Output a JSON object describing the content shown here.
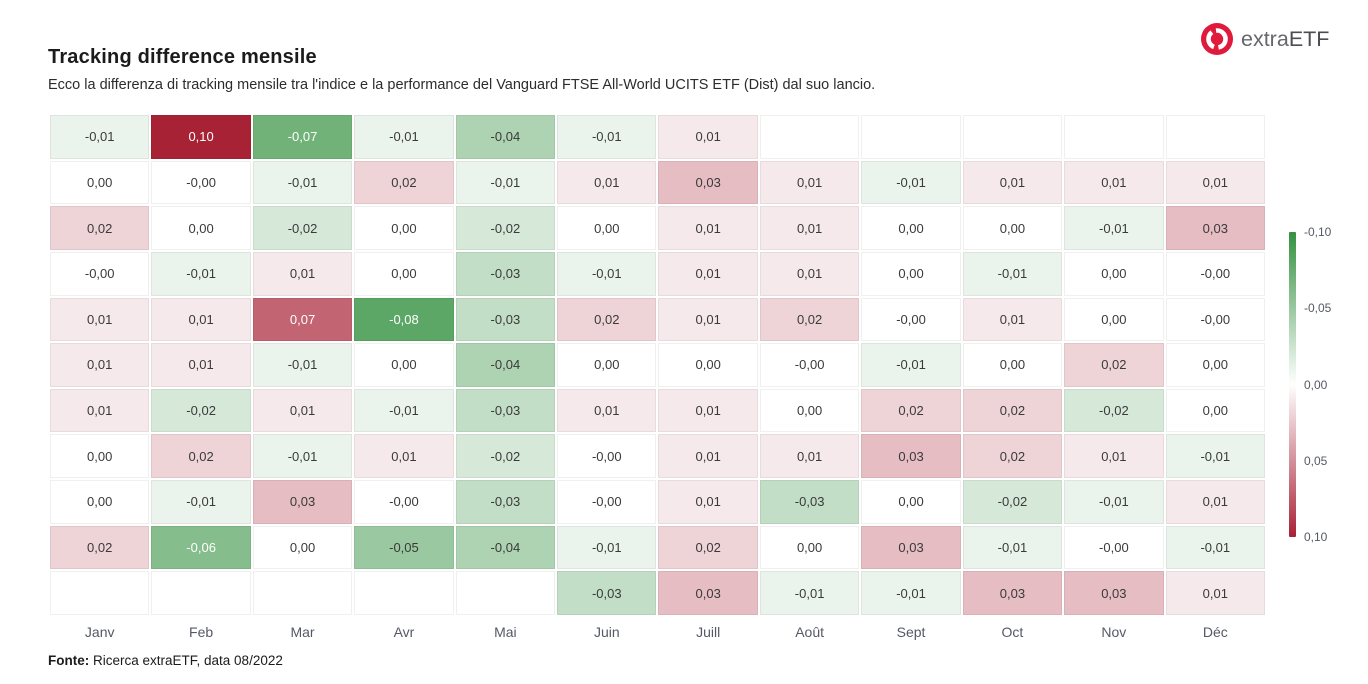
{
  "header": {
    "title": "Tracking difference mensile",
    "subtitle": "Ecco la differenza di tracking mensile tra l'indice e la performance del Vanguard FTSE All-World UCITS ETF (Dist) dal suo lancio."
  },
  "logo": {
    "text_part1": "extra",
    "text_part2": "ETF",
    "icon": "extraetf-target-icon",
    "icon_color": "#e01a3c"
  },
  "footer": {
    "label": "Fonte:",
    "text": " Ricerca extraETF, data 08/2022"
  },
  "chart_data": {
    "type": "heatmap",
    "title": "Tracking difference mensile",
    "x_labels": [
      "Janv",
      "Feb",
      "Mar",
      "Avr",
      "Mai",
      "Juin",
      "Juill",
      "Août",
      "Sept",
      "Oct",
      "Nov",
      "Déc"
    ],
    "decimal_separator": ",",
    "rows": [
      [
        "-0,01",
        "0,10",
        "-0,07",
        "-0,01",
        "-0,04",
        "-0,01",
        "0,01",
        null,
        null,
        null,
        null,
        null
      ],
      [
        "0,00",
        "-0,00",
        "-0,01",
        "0,02",
        "-0,01",
        "0,01",
        "0,03",
        "0,01",
        "-0,01",
        "0,01",
        "0,01",
        "0,01"
      ],
      [
        "0,02",
        "0,00",
        "-0,02",
        "0,00",
        "-0,02",
        "0,00",
        "0,01",
        "0,01",
        "0,00",
        "0,00",
        "-0,01",
        "0,03"
      ],
      [
        "-0,00",
        "-0,01",
        "0,01",
        "0,00",
        "-0,03",
        "-0,01",
        "0,01",
        "0,01",
        "0,00",
        "-0,01",
        "0,00",
        "-0,00"
      ],
      [
        "0,01",
        "0,01",
        "0,07",
        "-0,08",
        "-0,03",
        "0,02",
        "0,01",
        "0,02",
        "-0,00",
        "0,01",
        "0,00",
        "-0,00"
      ],
      [
        "0,01",
        "0,01",
        "-0,01",
        "0,00",
        "-0,04",
        "0,00",
        "0,00",
        "-0,00",
        "-0,01",
        "0,00",
        "0,02",
        "0,00"
      ],
      [
        "0,01",
        "-0,02",
        "0,01",
        "-0,01",
        "-0,03",
        "0,01",
        "0,01",
        "0,00",
        "0,02",
        "0,02",
        "-0,02",
        "0,00"
      ],
      [
        "0,00",
        "0,02",
        "-0,01",
        "0,01",
        "-0,02",
        "-0,00",
        "0,01",
        "0,01",
        "0,03",
        "0,02",
        "0,01",
        "-0,01"
      ],
      [
        "0,00",
        "-0,01",
        "0,03",
        "-0,00",
        "-0,03",
        "-0,00",
        "0,01",
        "-0,03",
        "0,00",
        "-0,02",
        "-0,01",
        "0,01"
      ],
      [
        "0,02",
        "-0,06",
        "0,00",
        "-0,05",
        "-0,04",
        "-0,01",
        "0,02",
        "0,00",
        "0,03",
        "-0,01",
        "-0,00",
        "-0,01"
      ],
      [
        null,
        null,
        null,
        null,
        null,
        "-0,03",
        "0,03",
        "-0,01",
        "-0,01",
        "0,03",
        "0,03",
        "0,01"
      ]
    ],
    "value_range": [
      -0.1,
      0.1
    ],
    "colorbar": {
      "position": "right",
      "ticks": [
        "-0,10",
        "-0,05",
        "0,00",
        "0,05",
        "0,10"
      ],
      "color_negative_end": "#349140",
      "color_mid": "#ffffff",
      "color_positive_end": "#a82236"
    },
    "grid": true
  }
}
